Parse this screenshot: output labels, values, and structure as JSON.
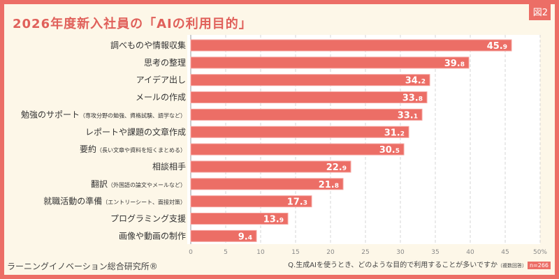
{
  "figure_label": "図2",
  "chart_data": {
    "type": "bar",
    "orientation": "horizontal",
    "title": "2026年度新入社員の「AIの利用目的」",
    "categories": [
      {
        "main": "調べものや情報収集",
        "sub": ""
      },
      {
        "main": "思考の整理",
        "sub": ""
      },
      {
        "main": "アイデア出し",
        "sub": ""
      },
      {
        "main": "メールの作成",
        "sub": ""
      },
      {
        "main": "勉強のサポート",
        "sub": "（専攻分野の勉強、資格試験、語学など）"
      },
      {
        "main": "レポートや課題の文章作成",
        "sub": ""
      },
      {
        "main": "要約",
        "sub": "（長い文章や資料を短くまとめる）"
      },
      {
        "main": "相談相手",
        "sub": ""
      },
      {
        "main": "翻訳",
        "sub": "（外国語の論文やメールなど）"
      },
      {
        "main": "就職活動の準備",
        "sub": "（エントリーシート、面接対策）"
      },
      {
        "main": "プログラミング支援",
        "sub": ""
      },
      {
        "main": "画像や動画の制作",
        "sub": ""
      }
    ],
    "values": [
      45.9,
      39.8,
      34.2,
      33.8,
      33.1,
      31.2,
      30.5,
      22.9,
      21.8,
      17.3,
      13.9,
      9.4
    ],
    "xlim": [
      0,
      50
    ],
    "ticks": [
      "0",
      "5",
      "10",
      "15",
      "20",
      "25",
      "30",
      "35",
      "40",
      "45",
      "50%"
    ],
    "grid": true,
    "bar_color": "#ec6e66"
  },
  "footer": {
    "brand": "ラーニングイノベーション総合研究所®",
    "question": "Q.生成AIを使うとき、どのような目的で利用することが多いですか",
    "question_note": "（複数回答）",
    "n": "n=266"
  }
}
